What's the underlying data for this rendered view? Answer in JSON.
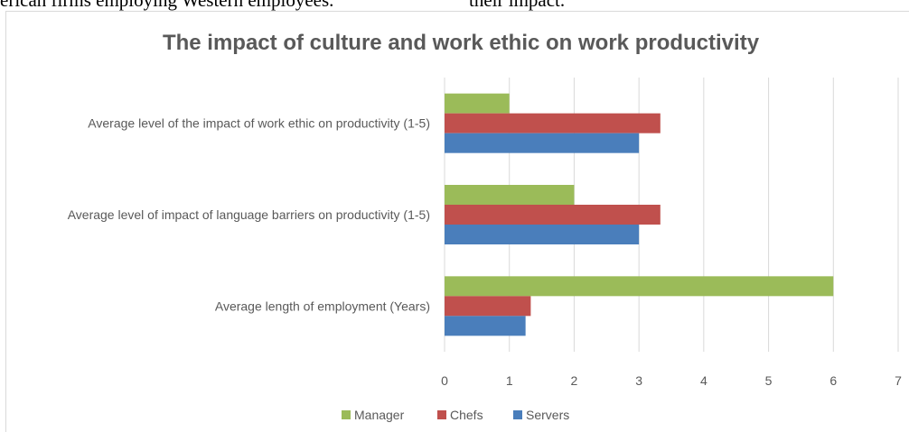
{
  "doc_fragments": {
    "left": "erican firms employing Western employees.",
    "right": "their impact."
  },
  "chart_data": {
    "type": "bar",
    "orientation": "horizontal",
    "title": "The impact of culture and work ethic on work productivity",
    "categories": [
      "Average length of employment (Years)",
      "Average level of impact of language barriers on productivity (1-5)",
      "Average level of the impact of work ethic on productivity  (1-5)"
    ],
    "series": [
      {
        "name": "Servers",
        "color": "#4a7ebb",
        "values": [
          1.25,
          3,
          3
        ]
      },
      {
        "name": "Chefs",
        "color": "#c0504d",
        "values": [
          1.33,
          3.33,
          3.33
        ]
      },
      {
        "name": "Manager",
        "color": "#9bbb59",
        "values": [
          6,
          2,
          1
        ]
      }
    ],
    "xlim": [
      0,
      7
    ],
    "xticks": [
      "0",
      "1",
      "2",
      "3",
      "4",
      "5",
      "6",
      "7"
    ],
    "grid": true,
    "legend": {
      "position": "bottom",
      "order": [
        "Manager",
        "Chefs",
        "Servers"
      ]
    }
  }
}
